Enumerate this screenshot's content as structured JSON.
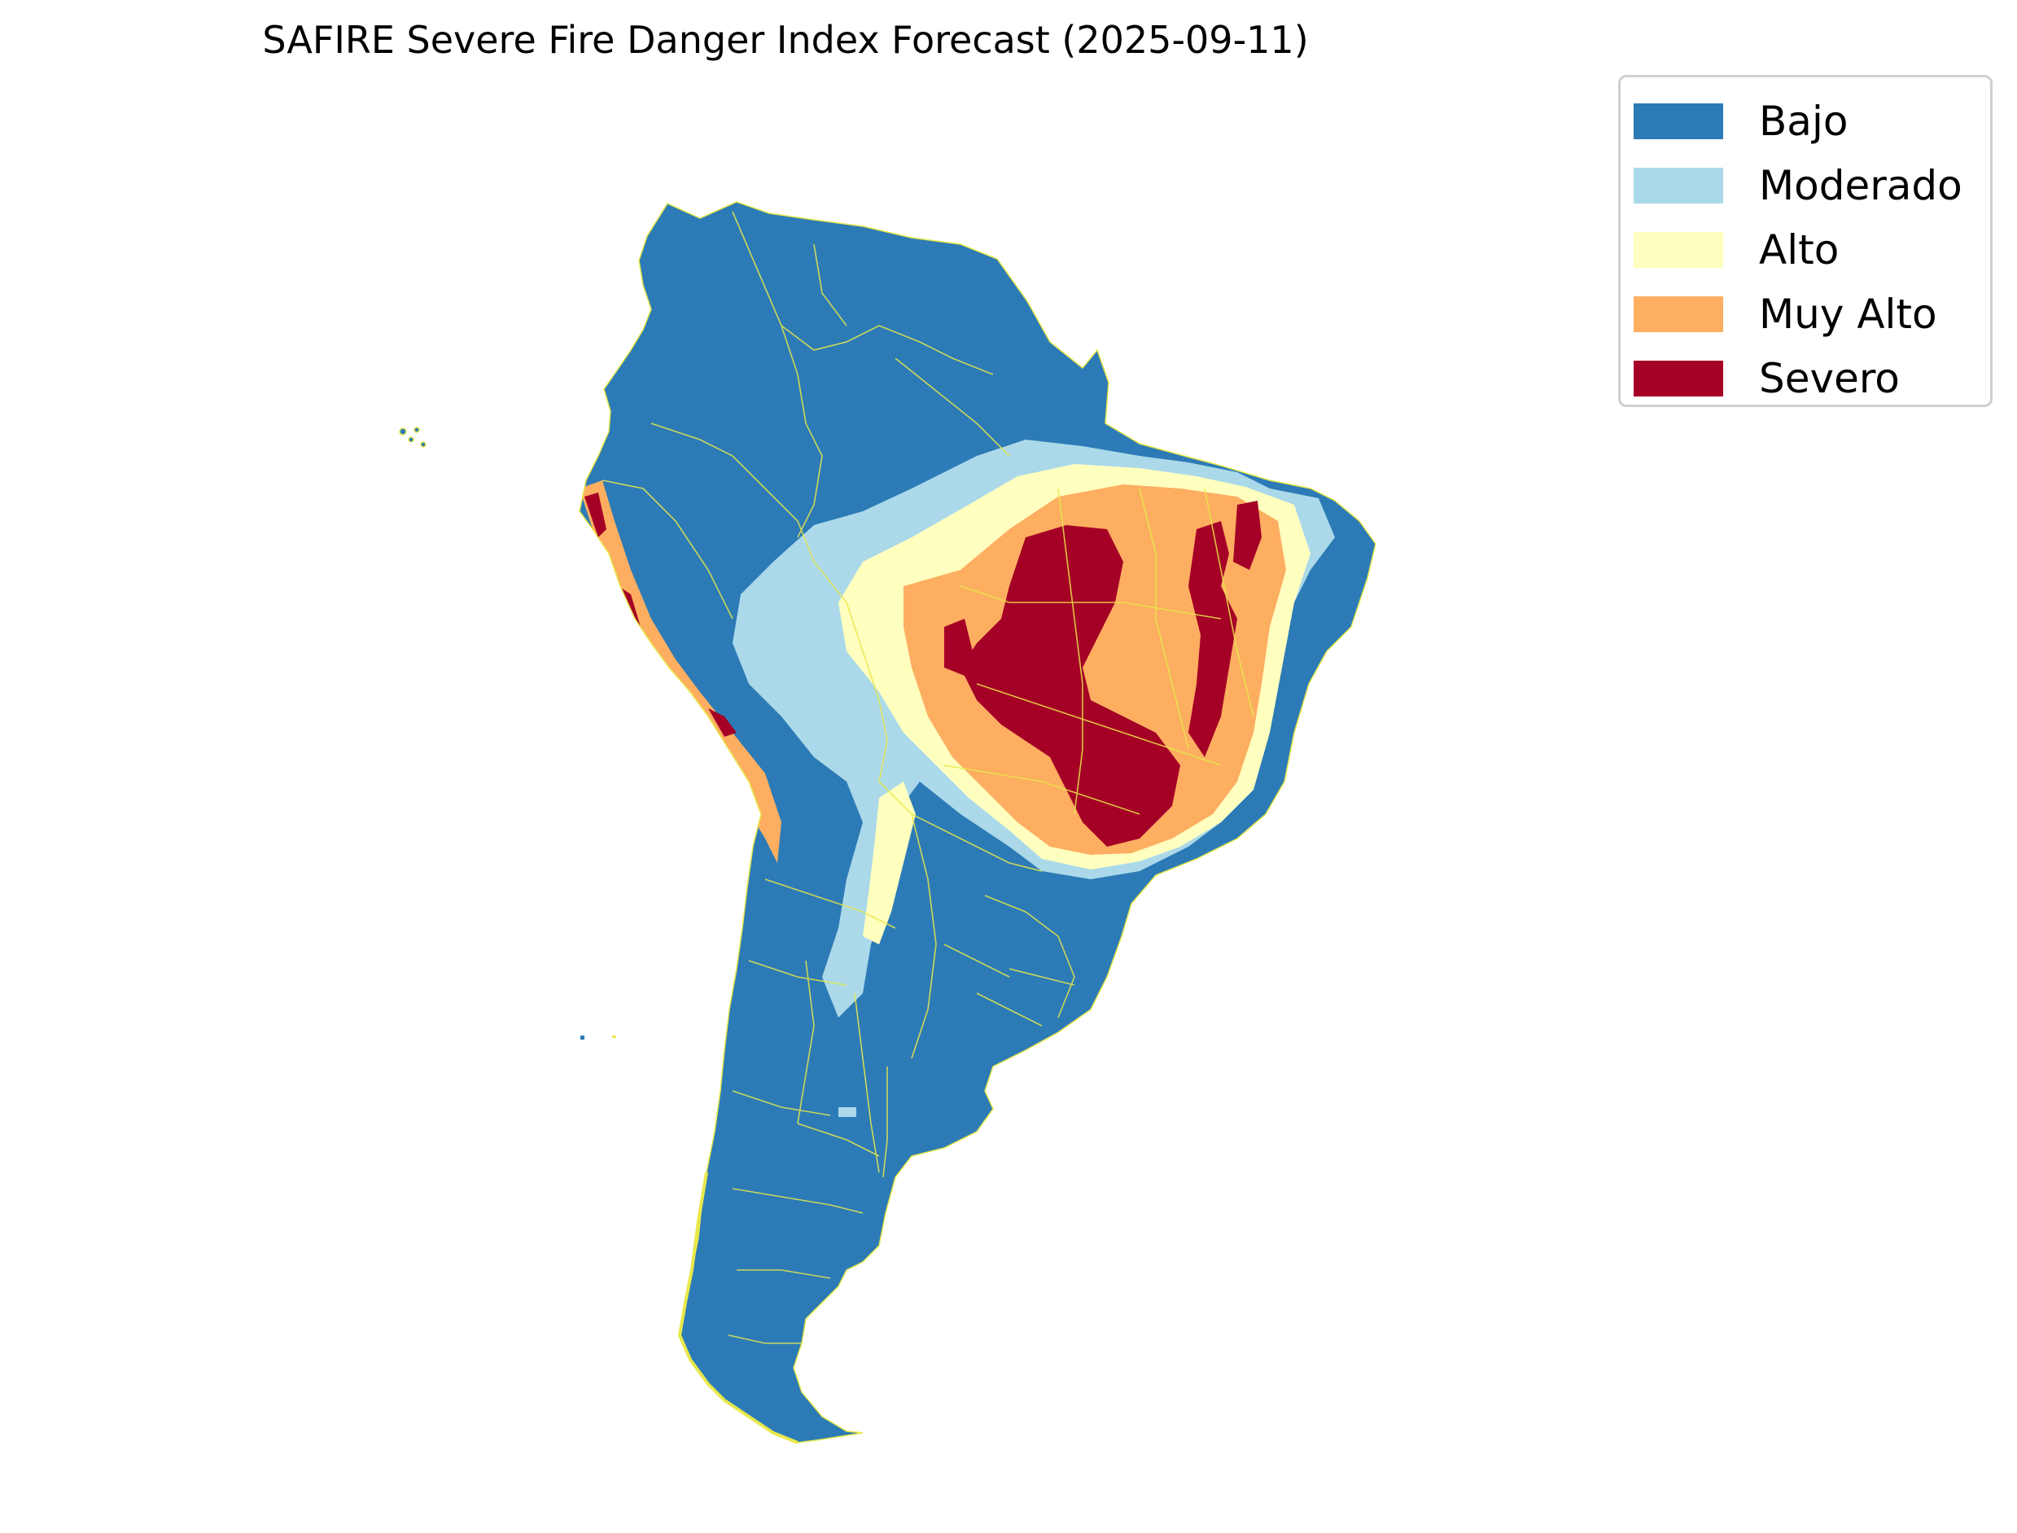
{
  "title": "SAFIRE Severe Fire Danger Index Forecast (2025-09-11)",
  "legend": {
    "items": [
      {
        "label": "Bajo",
        "color": "#2c7bb6"
      },
      {
        "label": "Moderado",
        "color": "#abd9e9"
      },
      {
        "label": "Alto",
        "color": "#ffffbf"
      },
      {
        "label": "Muy Alto",
        "color": "#fdae61"
      },
      {
        "label": "Severo",
        "color": "#a50026"
      }
    ]
  },
  "map": {
    "region": "South America",
    "border_color": "#e8e84a"
  }
}
